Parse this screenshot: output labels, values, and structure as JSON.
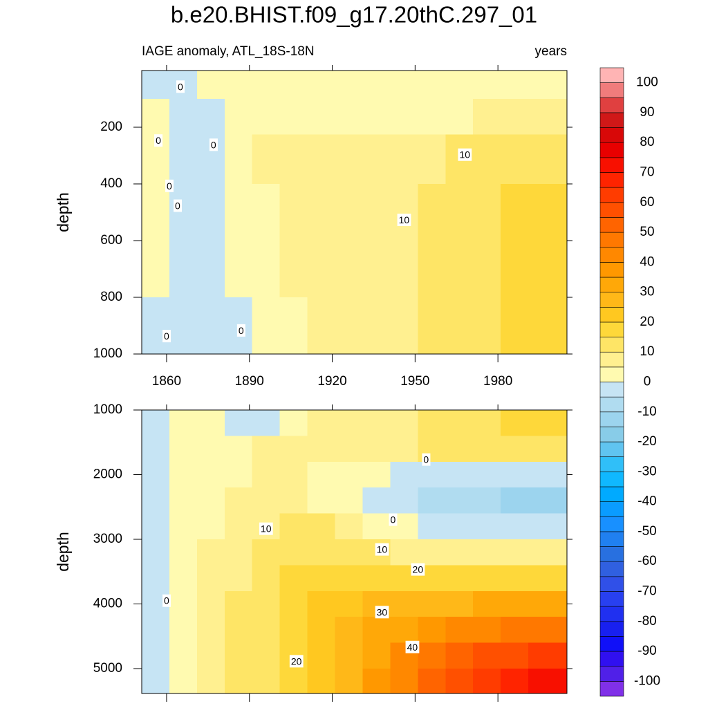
{
  "title": "b.e20.BHIST.f09_g17.20thC.297_01",
  "chart_data": [
    {
      "type": "contour",
      "subtitle_left": "IAGE anomaly, ATL_18S-18N",
      "subtitle_right": "years",
      "y_label": "depth",
      "xlim": [
        1851,
        2005
      ],
      "ylim": [
        0,
        1000
      ],
      "y_reversed": true,
      "xticks": [
        1860,
        1890,
        1920,
        1950,
        1980
      ],
      "xtick_labels": true,
      "yticks": [
        200,
        400,
        600,
        800,
        1000
      ],
      "x": [
        1856,
        1866,
        1876,
        1886,
        1896,
        1906,
        1916,
        1926,
        1936,
        1946,
        1956,
        1966,
        1976,
        1986,
        1996
      ],
      "y": [
        50,
        150,
        300,
        500,
        700,
        900
      ],
      "z": [
        [
          -1,
          -2,
          2,
          1,
          2,
          2,
          1,
          2,
          1,
          2,
          3,
          3,
          3,
          3,
          3
        ],
        [
          1,
          -2,
          -1,
          2,
          3,
          3,
          3,
          3,
          4,
          4,
          4,
          4,
          6,
          6,
          6
        ],
        [
          2,
          -2,
          -1,
          3,
          6,
          6,
          7,
          7,
          7,
          8,
          9,
          11,
          12,
          13,
          13
        ],
        [
          2,
          -2,
          -1,
          3,
          4,
          6,
          7,
          7,
          8,
          9,
          11,
          12,
          13,
          16,
          16
        ],
        [
          2,
          -2,
          -1,
          2,
          3,
          6,
          7,
          7,
          8,
          9,
          11,
          12,
          13,
          16,
          16
        ],
        [
          -1,
          -2,
          -2,
          -1,
          3,
          4,
          7,
          7,
          8,
          9,
          11,
          11,
          12,
          15,
          16
        ]
      ],
      "contour_labels": [
        {
          "x": 1865,
          "y": 60,
          "value": 0
        },
        {
          "x": 1857,
          "y": 250,
          "value": 0
        },
        {
          "x": 1877,
          "y": 265,
          "value": 0
        },
        {
          "x": 1861,
          "y": 410,
          "value": 0
        },
        {
          "x": 1864,
          "y": 480,
          "value": 0
        },
        {
          "x": 1860,
          "y": 940,
          "value": 0
        },
        {
          "x": 1887,
          "y": 920,
          "value": 0
        },
        {
          "x": 1946,
          "y": 530,
          "value": 10
        },
        {
          "x": 1968,
          "y": 300,
          "value": 10
        }
      ]
    },
    {
      "type": "contour",
      "y_label": "depth",
      "xlim": [
        1851,
        2005
      ],
      "ylim": [
        1000,
        5385
      ],
      "y_reversed": true,
      "xticks": [
        1860,
        1890,
        1920,
        1950,
        1980
      ],
      "xtick_labels": false,
      "yticks": [
        1000,
        2000,
        3000,
        4000,
        5000
      ],
      "x": [
        1856,
        1866,
        1876,
        1886,
        1896,
        1906,
        1916,
        1926,
        1936,
        1946,
        1956,
        1966,
        1976,
        1986,
        1996
      ],
      "y": [
        1200,
        1600,
        2000,
        2400,
        2800,
        3200,
        3600,
        4000,
        4400,
        4800,
        5200
      ],
      "z": [
        [
          -2,
          3,
          3,
          -1,
          -1,
          3,
          6,
          7,
          8,
          9,
          11,
          12,
          13,
          16,
          17
        ],
        [
          -2,
          3,
          3,
          3,
          6,
          7,
          8,
          7,
          8,
          9,
          11,
          12,
          12,
          13,
          13
        ],
        [
          -2,
          3,
          3,
          4,
          6,
          7,
          3,
          3,
          4,
          -2,
          -2,
          -2,
          -2,
          -2,
          -2
        ],
        [
          -2,
          3,
          4,
          6,
          7,
          8,
          3,
          3,
          -2,
          -3,
          -6,
          -7,
          -7,
          -11,
          -12
        ],
        [
          -2,
          3,
          4,
          7,
          9,
          12,
          11,
          7,
          4,
          3,
          -2,
          -2,
          -3,
          -3,
          -3
        ],
        [
          -2,
          3,
          6,
          8,
          11,
          13,
          13,
          12,
          10,
          8,
          7,
          6,
          6,
          6,
          6
        ],
        [
          -2,
          3,
          7,
          9,
          12,
          16,
          17,
          17,
          17,
          16,
          16,
          17,
          18,
          18,
          18
        ],
        [
          -2,
          3,
          7,
          11,
          13,
          17,
          21,
          23,
          25,
          27,
          28,
          29,
          30,
          31,
          32
        ],
        [
          -2,
          3,
          7,
          11,
          14,
          18,
          22,
          27,
          31,
          34,
          38,
          41,
          44,
          46,
          48
        ],
        [
          -2,
          3,
          7,
          11,
          14,
          18,
          22,
          28,
          34,
          40,
          45,
          50,
          55,
          58,
          62
        ],
        [
          -2,
          3,
          7,
          11,
          14,
          18,
          23,
          29,
          36,
          43,
          50,
          57,
          63,
          68,
          72
        ]
      ],
      "contour_labels": [
        {
          "x": 1860,
          "y": 3963,
          "value": 0
        },
        {
          "x": 1896,
          "y": 2850,
          "value": 10
        },
        {
          "x": 1942,
          "y": 2710,
          "value": 0
        },
        {
          "x": 1954,
          "y": 1780,
          "value": 0
        },
        {
          "x": 1938,
          "y": 3170,
          "value": 10
        },
        {
          "x": 1951,
          "y": 3480,
          "value": 20
        },
        {
          "x": 1907,
          "y": 4900,
          "value": 20
        },
        {
          "x": 1938,
          "y": 4140,
          "value": 30
        },
        {
          "x": 1949,
          "y": 4680,
          "value": 40
        }
      ]
    }
  ],
  "colorbar": {
    "levels": [
      -100,
      -95,
      -90,
      -85,
      -80,
      -75,
      -70,
      -65,
      -60,
      -55,
      -50,
      -45,
      -40,
      -35,
      -30,
      -25,
      -20,
      -15,
      -10,
      -5,
      0,
      5,
      10,
      15,
      20,
      25,
      30,
      35,
      40,
      45,
      50,
      55,
      60,
      65,
      70,
      75,
      80,
      85,
      90,
      95,
      100
    ],
    "colors": [
      "#8030e8",
      "#5020e8",
      "#3010f0",
      "#1010f8",
      "#1820f0",
      "#2030f0",
      "#2840f0",
      "#3050e8",
      "#3060e0",
      "#2870e0",
      "#2080f0",
      "#1890ff",
      "#0a9cff",
      "#00aaff",
      "#10b8ff",
      "#30bff8",
      "#60c4f0",
      "#88cce8",
      "#9cd4ee",
      "#b0dcf0",
      "#c6e4f4",
      "#fffab0",
      "#fff090",
      "#fee566",
      "#fed83a",
      "#ffc820",
      "#ffb818",
      "#ffa808",
      "#ff9800",
      "#ff8800",
      "#ff7800",
      "#ff6400",
      "#ff5000",
      "#ff3c00",
      "#ff2400",
      "#f81000",
      "#e80000",
      "#d80808",
      "#d01818",
      "#e04040",
      "#f07c7c",
      "#ffb4b4"
    ],
    "ticks": [
      -100,
      -90,
      -80,
      -70,
      -60,
      -50,
      -40,
      -30,
      -20,
      -10,
      0,
      10,
      20,
      30,
      40,
      50,
      60,
      70,
      80,
      90,
      100
    ]
  }
}
